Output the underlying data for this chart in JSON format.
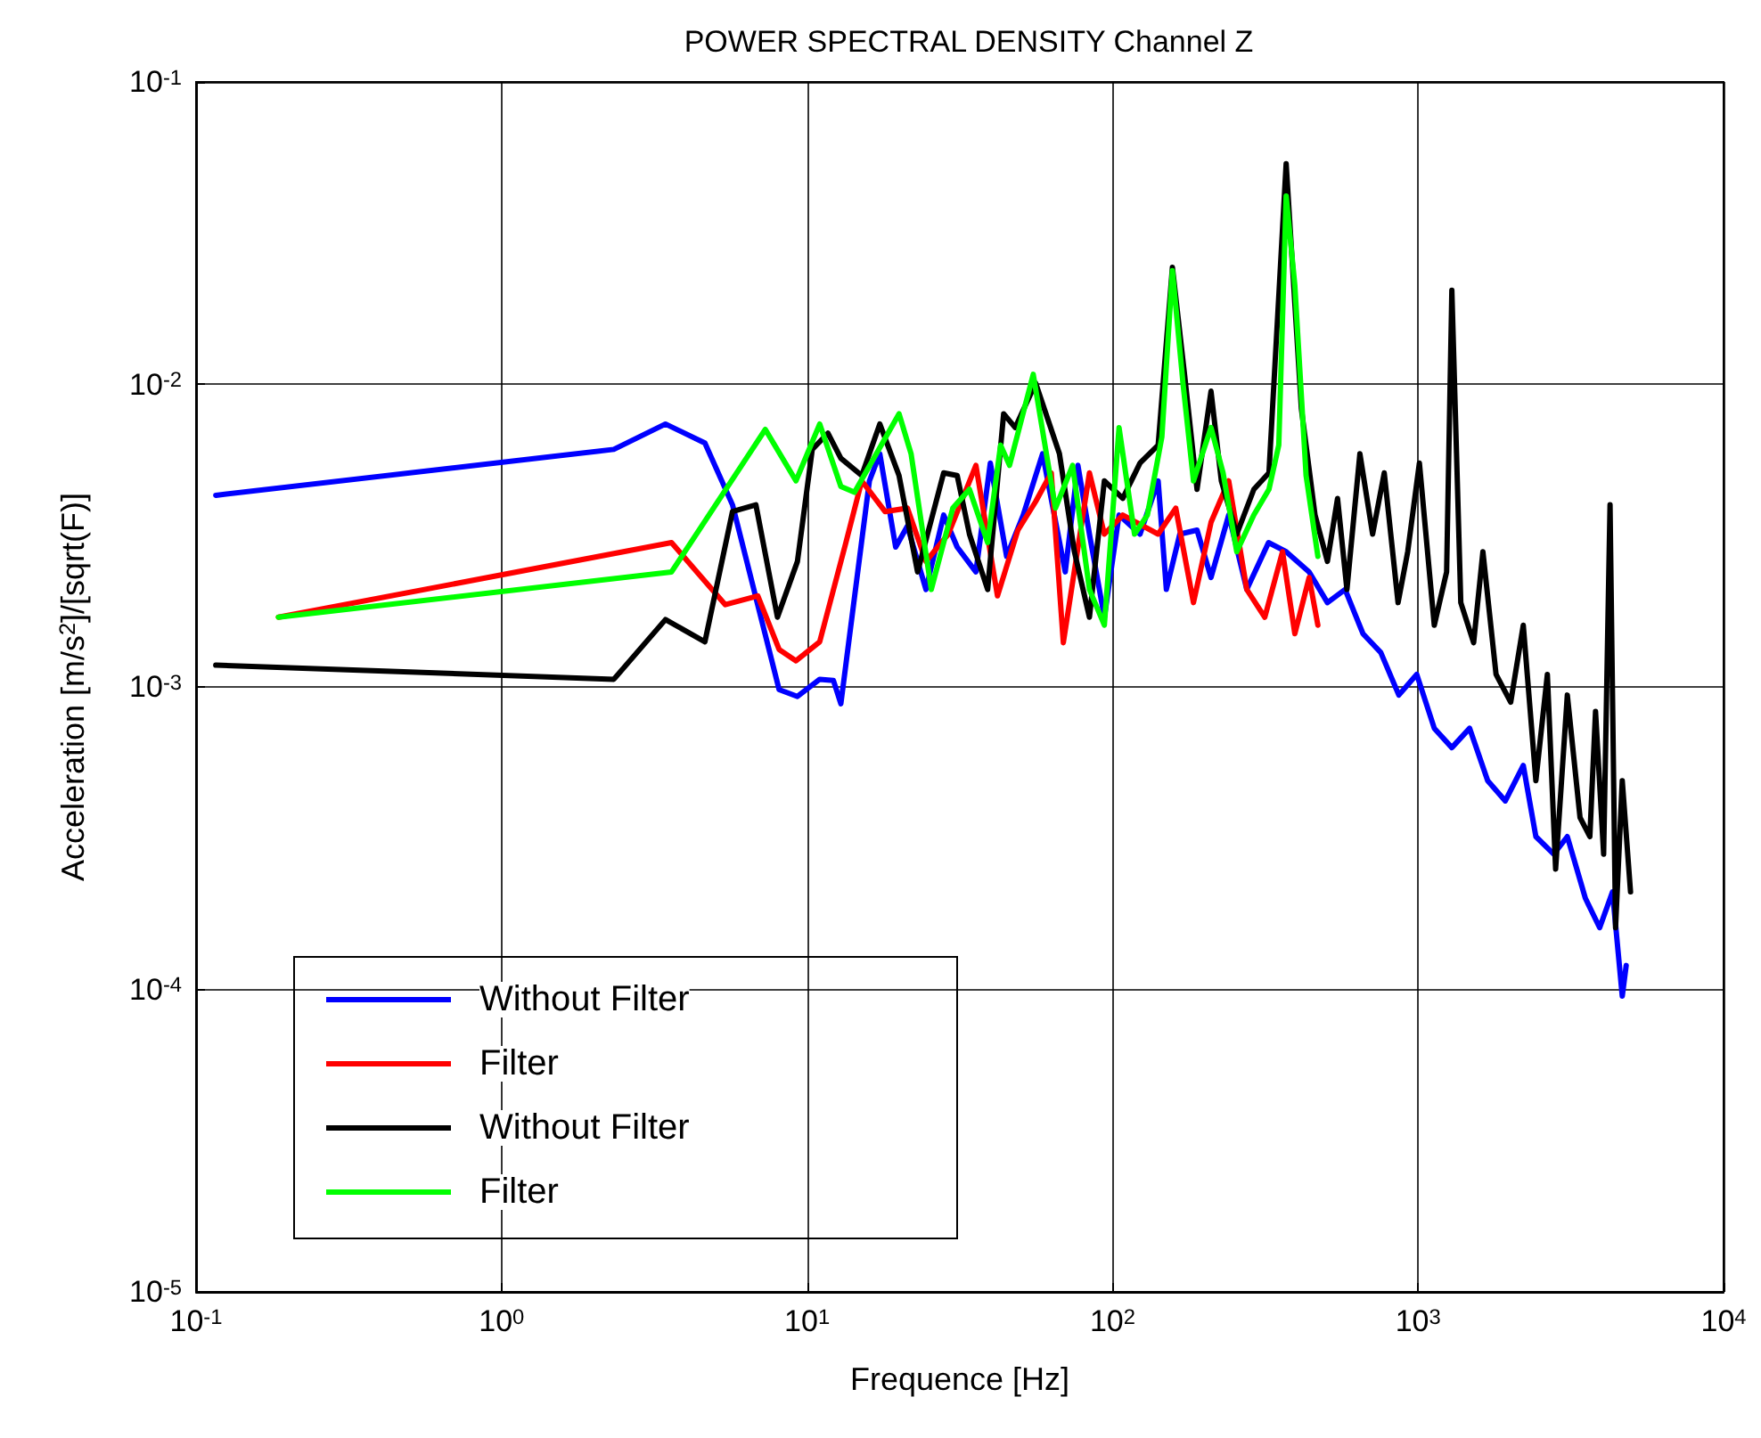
{
  "chart_data": {
    "type": "line",
    "title": "POWER SPECTRAL DENSITY Channel Z",
    "xlabel": "Frequence [Hz]",
    "ylabel": "Acceleration [m/s$^{2}$]/[sqrt(F)]",
    "log": "xy",
    "grid": true,
    "legend": "bottom left",
    "marker": "none",
    "line_style": "solid",
    "xlim": [
      0.1,
      10000
    ],
    "ylim": [
      1e-05,
      0.1
    ],
    "xticks": [
      {
        "value": 0.1,
        "label": "10$^{-1}$"
      },
      {
        "value": 1,
        "label": "10$^{0}$"
      },
      {
        "value": 10,
        "label": "10$^{1}$"
      },
      {
        "value": 100,
        "label": "10$^{2}$"
      },
      {
        "value": 1000,
        "label": "10$^{3}$"
      },
      {
        "value": 10000,
        "label": "10$^{4}$"
      }
    ],
    "yticks": [
      {
        "value": 1e-05,
        "label": "10$^{-5}$"
      },
      {
        "value": 0.0001,
        "label": "10$^{-4}$"
      },
      {
        "value": 0.001,
        "label": "10$^{-3}$"
      },
      {
        "value": 0.01,
        "label": "10$^{-2}$"
      },
      {
        "value": 0.1,
        "label": "10$^{-1}$"
      }
    ],
    "series": [
      {
        "name": "Without Filter",
        "color": "#0000ff",
        "x": [
          0.116,
          2.33,
          3.44,
          4.63,
          5.7,
          8.1,
          9.3,
          11,
          12.2,
          12.9,
          16,
          17.3,
          19.5,
          21.3,
          24.5,
          28,
          31,
          35.7,
          39.8,
          45,
          51,
          59,
          70,
          77,
          84,
          94,
          105,
          123,
          141,
          150,
          166,
          189,
          210,
          240,
          275,
          324,
          370,
          440,
          505,
          577,
          660,
          755,
          865,
          990,
          1130,
          1290,
          1475,
          1690,
          1930,
          2210,
          2430,
          2780,
          3080,
          3530,
          3930,
          4330,
          4660,
          4800
        ],
        "values": [
          0.0043,
          0.0061,
          0.0074,
          0.0064,
          0.004,
          0.00098,
          0.00093,
          0.00106,
          0.00105,
          0.00088,
          0.0048,
          0.0059,
          0.0029,
          0.0034,
          0.0021,
          0.0037,
          0.0029,
          0.0024,
          0.0055,
          0.0027,
          0.0037,
          0.0059,
          0.0024,
          0.0054,
          0.0032,
          0.0017,
          0.0037,
          0.0032,
          0.0048,
          0.0021,
          0.0032,
          0.0033,
          0.0023,
          0.0037,
          0.0021,
          0.003,
          0.0028,
          0.0024,
          0.0019,
          0.0021,
          0.0015,
          0.0013,
          0.00094,
          0.0011,
          0.00073,
          0.00063,
          0.00073,
          0.00049,
          0.00042,
          0.00055,
          0.00032,
          0.00028,
          0.00032,
          0.0002,
          0.00016,
          0.00021,
          9.5e-05,
          0.00012
        ]
      },
      {
        "name": "Filter",
        "color": "#ff0000",
        "x": [
          0.186,
          3.6,
          5.4,
          6.9,
          8.1,
          9.2,
          11,
          13.4,
          15.1,
          18,
          21.3,
          24.5,
          29,
          35.7,
          42,
          49,
          56,
          63,
          69,
          84,
          94,
          108,
          141,
          161,
          184,
          210,
          240,
          275,
          315,
          360,
          395,
          440,
          470
        ],
        "values": [
          0.0017,
          0.003,
          0.00187,
          0.002,
          0.00133,
          0.00122,
          0.00141,
          0.003,
          0.0048,
          0.0038,
          0.0039,
          0.0026,
          0.0032,
          0.0054,
          0.002,
          0.0033,
          0.0041,
          0.0051,
          0.0014,
          0.0051,
          0.0032,
          0.0037,
          0.0032,
          0.0039,
          0.0019,
          0.0035,
          0.0048,
          0.0021,
          0.0017,
          0.0028,
          0.0015,
          0.0023,
          0.0016
        ]
      },
      {
        "name": "Without Filter",
        "color": "#000000",
        "x": [
          0.116,
          2.33,
          3.44,
          4.63,
          5.7,
          6.8,
          8,
          9.3,
          10.4,
          11.7,
          12.9,
          15.1,
          17.3,
          20,
          23,
          28,
          31,
          34,
          39,
          44,
          48,
          56,
          67,
          75,
          84,
          94,
          108,
          123,
          141,
          157,
          172,
          189,
          210,
          227,
          255,
          290,
          325,
          370,
          415,
          460,
          505,
          545,
          585,
          645,
          710,
          775,
          860,
          925,
          1010,
          1130,
          1240,
          1290,
          1380,
          1520,
          1630,
          1800,
          2010,
          2210,
          2430,
          2650,
          2820,
          3080,
          3390,
          3650,
          3810,
          4050,
          4250,
          4430,
          4660,
          4960
        ],
        "values": [
          0.00118,
          0.00106,
          0.00167,
          0.00141,
          0.0038,
          0.004,
          0.0017,
          0.0026,
          0.0061,
          0.0069,
          0.0057,
          0.005,
          0.0074,
          0.005,
          0.0024,
          0.0051,
          0.005,
          0.0032,
          0.0021,
          0.008,
          0.0072,
          0.0101,
          0.0059,
          0.0028,
          0.0017,
          0.0048,
          0.0042,
          0.0055,
          0.0063,
          0.0244,
          0.0108,
          0.0045,
          0.0095,
          0.0048,
          0.0032,
          0.0045,
          0.0051,
          0.0537,
          0.0083,
          0.0037,
          0.0026,
          0.0042,
          0.0021,
          0.0059,
          0.0032,
          0.0051,
          0.0019,
          0.0028,
          0.0055,
          0.0016,
          0.0024,
          0.0205,
          0.0019,
          0.0014,
          0.0028,
          0.0011,
          0.00089,
          0.0016,
          0.00049,
          0.0011,
          0.00025,
          0.00094,
          0.00037,
          0.00032,
          0.00083,
          0.00028,
          0.004,
          0.00016,
          0.00049,
          0.00021
        ]
      },
      {
        "name": "Filter",
        "color": "#00ff00",
        "x": [
          0.186,
          3.6,
          7.3,
          9.2,
          11,
          12.9,
          14.3,
          20,
          21.9,
          25.5,
          30,
          34,
          39,
          43,
          46,
          55,
          65,
          74,
          84,
          94,
          105,
          118,
          130,
          145,
          157,
          170,
          184,
          210,
          230,
          255,
          290,
          325,
          350,
          370,
          395,
          430,
          470
        ],
        "values": [
          0.0017,
          0.0024,
          0.0071,
          0.0048,
          0.0074,
          0.0046,
          0.0044,
          0.008,
          0.0059,
          0.0021,
          0.0039,
          0.0045,
          0.003,
          0.0063,
          0.0054,
          0.0108,
          0.0039,
          0.0054,
          0.0021,
          0.0016,
          0.0072,
          0.0032,
          0.0037,
          0.0067,
          0.0238,
          0.0101,
          0.0048,
          0.0072,
          0.0051,
          0.0028,
          0.0037,
          0.0045,
          0.0063,
          0.042,
          0.0213,
          0.005,
          0.0027
        ]
      }
    ]
  }
}
